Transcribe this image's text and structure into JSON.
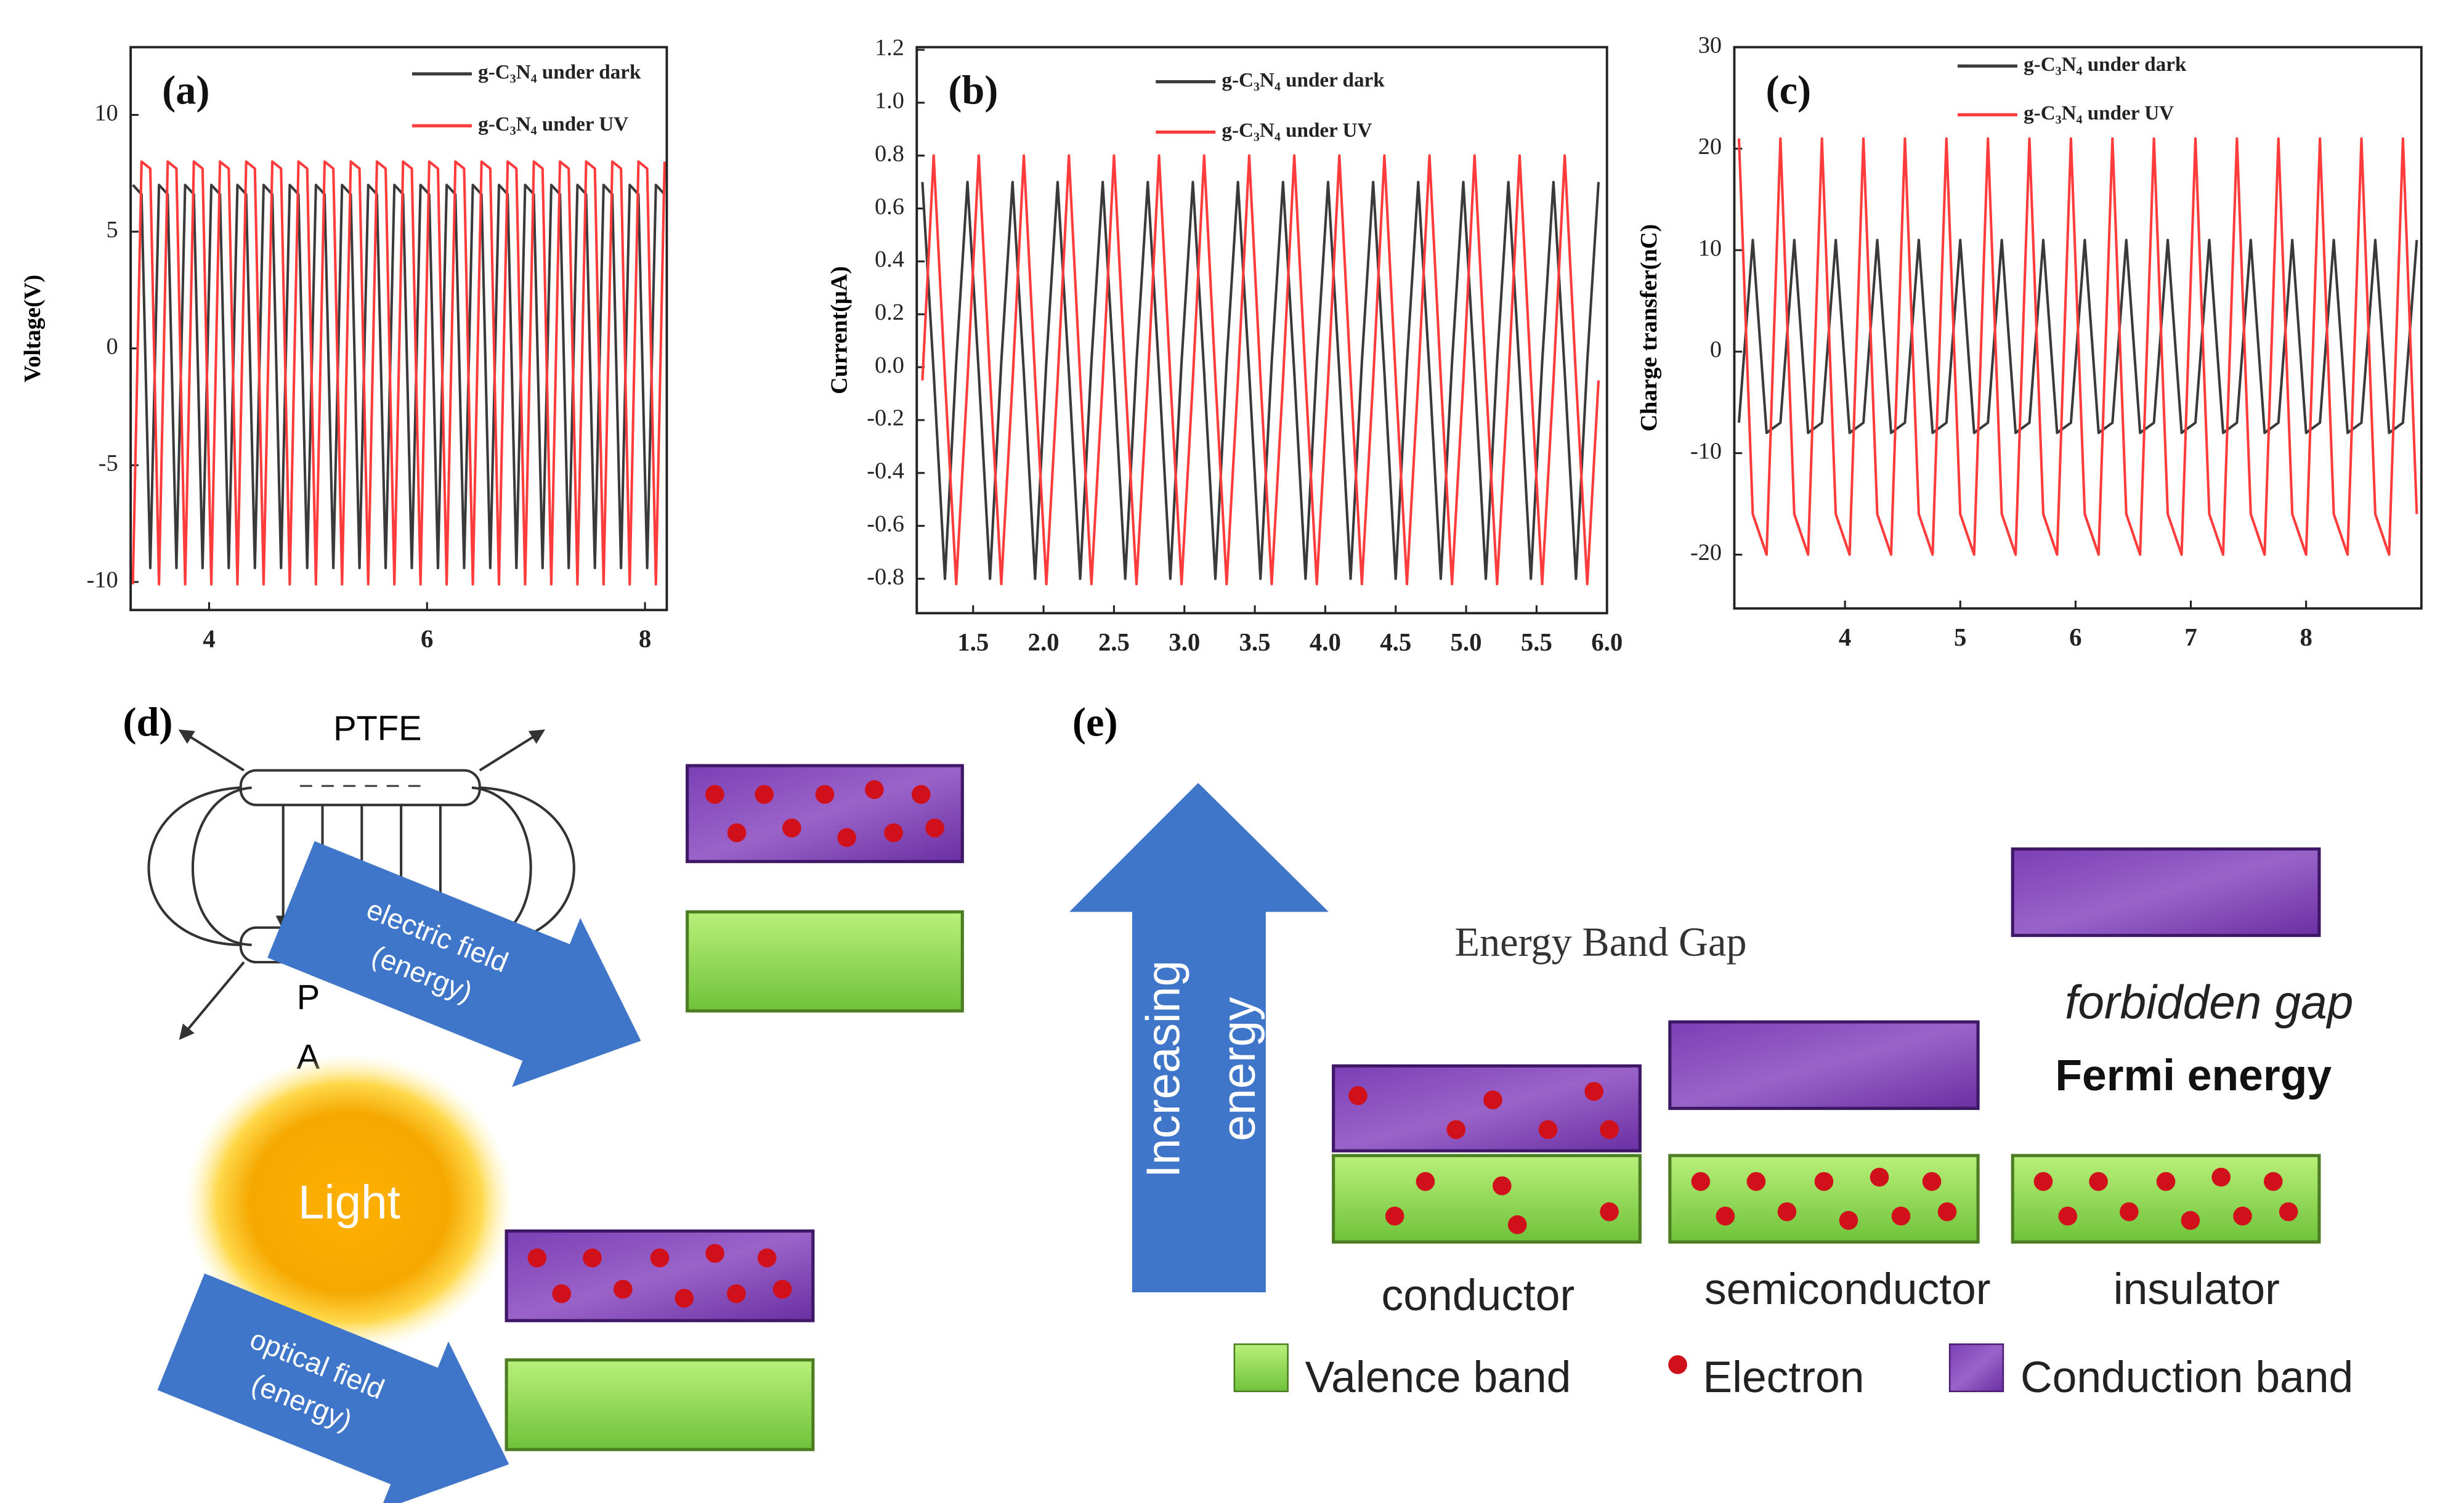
{
  "chart_data": [
    {
      "type": "line",
      "title": "(a)",
      "y_label": "Voltage(V)",
      "xlim": [
        3.28,
        8.2
      ],
      "xticks": [
        4,
        6,
        8
      ],
      "ylim": [
        -11.2,
        12.9
      ],
      "yticks": [
        -10,
        -5,
        0,
        5,
        10
      ],
      "x": [
        3.3,
        3.38,
        3.46,
        3.54,
        3.62,
        3.7,
        3.78,
        3.86,
        3.94,
        4.02,
        4.1,
        4.18,
        4.26,
        4.34,
        4.42,
        4.5,
        4.58,
        4.66,
        4.74,
        4.82,
        4.9,
        4.98,
        5.06,
        5.14,
        5.22,
        5.3,
        5.38,
        5.46,
        5.54,
        5.62,
        5.7,
        5.78,
        5.86,
        5.94,
        6.02,
        6.1,
        6.18,
        6.26,
        6.34,
        6.42,
        6.5,
        6.58,
        6.66,
        6.74,
        6.82,
        6.9,
        6.98,
        7.06,
        7.14,
        7.22,
        7.3,
        7.38,
        7.46,
        7.54,
        7.62,
        7.7,
        7.78,
        7.86,
        7.94,
        8.02,
        8.1,
        8.18
      ],
      "series": [
        {
          "name": "g-C₃N₄ under dark",
          "color": "#3a3a3a",
          "values": [
            7,
            6.6,
            -9.4,
            7,
            6.6,
            -9.4,
            7,
            6.6,
            -9.4,
            7,
            6.6,
            -9.4,
            7,
            6.6,
            -9.4,
            7,
            6.6,
            -9.4,
            7,
            6.6,
            -9.4,
            7,
            6.6,
            -9.4,
            7,
            6.6,
            -9.4,
            7,
            6.6,
            -9.4,
            7,
            6.6,
            -9.4,
            7,
            6.6,
            -9.4,
            7,
            6.6,
            -9.4,
            7,
            6.6,
            -9.4,
            7,
            6.6,
            -9.4,
            7,
            6.6,
            -9.4,
            7,
            6.6,
            -9.4,
            7,
            6.6,
            -9.4,
            7,
            6.6,
            -9.4,
            7,
            6.6,
            -9.4,
            7,
            6.6
          ]
        },
        {
          "name": "g-C₃N₄ under UV",
          "color": "#ff3b3b",
          "values": [
            -10.1,
            8,
            7.7,
            -10.1,
            8,
            7.7,
            -10.1,
            8,
            7.7,
            -10.1,
            8,
            7.7,
            -10.1,
            8,
            7.7,
            -10.1,
            8,
            7.7,
            -10.1,
            8,
            7.7,
            -10.1,
            8,
            7.7,
            -10.1,
            8,
            7.7,
            -10.1,
            8,
            7.7,
            -10.1,
            8,
            7.7,
            -10.1,
            8,
            7.7,
            -10.1,
            8,
            7.7,
            -10.1,
            8,
            7.7,
            -10.1,
            8,
            7.7,
            -10.1,
            8,
            7.7,
            -10.1,
            8,
            7.7,
            -10.1,
            8,
            7.7,
            -10.1,
            8,
            7.7,
            -10.1,
            8,
            7.7,
            -10.1,
            8
          ]
        }
      ]
    },
    {
      "type": "line",
      "title": "(b)",
      "y_label": "Current(μA)",
      "xlim": [
        1.1,
        6.0
      ],
      "xticks": [
        1.5,
        {
          "value": 2,
          "label": "2.0"
        },
        2.5,
        {
          "value": 3,
          "label": "3.0"
        },
        3.5,
        {
          "value": 4,
          "label": "4.0"
        },
        4.5,
        {
          "value": 5,
          "label": "5.0"
        },
        5.5,
        {
          "value": 6,
          "label": "6.0"
        }
      ],
      "ylim": [
        -0.93,
        1.21
      ],
      "yticks": [
        -0.8,
        -0.6,
        -0.4,
        -0.2,
        {
          "value": 0,
          "label": "0.0"
        },
        0.2,
        0.4,
        0.6,
        0.8,
        {
          "value": 1,
          "label": "1.0"
        },
        1.2
      ],
      "x": [
        1.14,
        1.22,
        1.3,
        1.38,
        1.46,
        1.54,
        1.62,
        1.7,
        1.78,
        1.86,
        1.94,
        2.02,
        2.1,
        2.18,
        2.26,
        2.34,
        2.42,
        2.5,
        2.58,
        2.66,
        2.74,
        2.82,
        2.9,
        2.98,
        3.06,
        3.14,
        3.22,
        3.3,
        3.38,
        3.46,
        3.54,
        3.62,
        3.7,
        3.78,
        3.86,
        3.94,
        4.02,
        4.1,
        4.18,
        4.26,
        4.34,
        4.42,
        4.5,
        4.58,
        4.66,
        4.74,
        4.82,
        4.9,
        4.98,
        5.06,
        5.14,
        5.22,
        5.3,
        5.38,
        5.46,
        5.54,
        5.62,
        5.7,
        5.78,
        5.86,
        5.94
      ],
      "series": [
        {
          "name": "g-C₃N₄ under dark",
          "color": "#3a3a3a",
          "values": [
            0.7,
            -0.02,
            -0.8,
            0.02,
            0.7,
            -0.02,
            -0.8,
            0.02,
            0.7,
            -0.02,
            -0.8,
            0.02,
            0.7,
            -0.02,
            -0.8,
            0.02,
            0.7,
            -0.02,
            -0.8,
            0.02,
            0.7,
            -0.02,
            -0.8,
            0.02,
            0.7,
            -0.02,
            -0.8,
            0.02,
            0.7,
            -0.02,
            -0.8,
            0.02,
            0.7,
            -0.02,
            -0.8,
            0.02,
            0.7,
            -0.02,
            -0.8,
            0.02,
            0.7,
            -0.02,
            -0.8,
            0.02,
            0.7,
            -0.02,
            -0.8,
            0.02,
            0.7,
            -0.02,
            -0.8,
            0.02,
            0.7,
            -0.02,
            -0.8,
            0.02,
            0.7,
            -0.02,
            -0.8,
            0.02,
            0.7
          ]
        },
        {
          "name": "g-C₃N₄ under UV",
          "color": "#ff3b3b",
          "values": [
            -0.05,
            0.8,
            -0.04,
            -0.82,
            -0.05,
            0.8,
            -0.04,
            -0.82,
            -0.05,
            0.8,
            -0.04,
            -0.82,
            -0.05,
            0.8,
            -0.04,
            -0.82,
            -0.05,
            0.8,
            -0.04,
            -0.82,
            -0.05,
            0.8,
            -0.04,
            -0.82,
            -0.05,
            0.8,
            -0.04,
            -0.82,
            -0.05,
            0.8,
            -0.04,
            -0.82,
            -0.05,
            0.8,
            -0.04,
            -0.82,
            -0.05,
            0.8,
            -0.04,
            -0.82,
            -0.05,
            0.8,
            -0.04,
            -0.82,
            -0.05,
            0.8,
            -0.04,
            -0.82,
            -0.05,
            0.8,
            -0.04,
            -0.82,
            -0.05,
            0.8,
            -0.04,
            -0.82,
            -0.05,
            0.8,
            -0.04,
            -0.82,
            -0.05
          ]
        }
      ]
    },
    {
      "type": "line",
      "title": "(c)",
      "y_label": "Charge transfer(nC)",
      "xlim": [
        3.04,
        9.0
      ],
      "xticks": [
        4,
        5,
        6,
        7,
        8
      ],
      "ylim": [
        -25.3,
        30
      ],
      "yticks": [
        -20,
        -10,
        0,
        10,
        20,
        30
      ],
      "x": [
        3.08,
        3.2,
        3.32,
        3.44,
        3.56,
        3.68,
        3.8,
        3.92,
        4.04,
        4.16,
        4.28,
        4.4,
        4.52,
        4.64,
        4.76,
        4.88,
        5.0,
        5.12,
        5.24,
        5.36,
        5.48,
        5.6,
        5.72,
        5.84,
        5.96,
        6.08,
        6.2,
        6.32,
        6.44,
        6.56,
        6.68,
        6.8,
        6.92,
        7.04,
        7.16,
        7.28,
        7.4,
        7.52,
        7.64,
        7.76,
        7.88,
        8.0,
        8.12,
        8.24,
        8.36,
        8.48,
        8.6,
        8.72,
        8.84,
        8.96
      ],
      "series": [
        {
          "name": "g-C₃N₄ under dark",
          "color": "#3a3a3a",
          "values": [
            -7,
            11,
            -8,
            -7,
            11,
            -8,
            -7,
            11,
            -8,
            -7,
            11,
            -8,
            -7,
            11,
            -8,
            -7,
            11,
            -8,
            -7,
            11,
            -8,
            -7,
            11,
            -8,
            -7,
            11,
            -8,
            -7,
            11,
            -8,
            -7,
            11,
            -8,
            -7,
            11,
            -8,
            -7,
            11,
            -8,
            -7,
            11,
            -8,
            -7,
            11,
            -8,
            -7,
            11,
            -8,
            -7,
            11
          ]
        },
        {
          "name": "g-C₃N₄ under UV",
          "color": "#ff3b3b",
          "values": [
            21,
            -16,
            -20,
            21,
            -16,
            -20,
            21,
            -16,
            -20,
            21,
            -16,
            -20,
            21,
            -16,
            -20,
            21,
            -16,
            -20,
            21,
            -16,
            -20,
            21,
            -16,
            -20,
            21,
            -16,
            -20,
            21,
            -16,
            -20,
            21,
            -16,
            -20,
            21,
            -16,
            -20,
            21,
            -16,
            -20,
            21,
            -16,
            -20,
            21,
            -16,
            -20,
            21,
            -16,
            -20,
            21,
            -16
          ]
        }
      ]
    }
  ],
  "diagram_d": {
    "label": "(d)",
    "top_plate": "PTFE",
    "bottom_plate_1": "P",
    "bottom_plate_2": "A",
    "arrow_1_line_1": "electric field",
    "arrow_1_line_2": "(energy)",
    "light": "Light",
    "arrow_2_line_1": "optical field",
    "arrow_2_line_2": "(energy)"
  },
  "diagram_e": {
    "label": "(e)",
    "arrow_line_1": "Increasing",
    "arrow_line_2": "energy",
    "title": "Energy Band Gap",
    "forbidden_gap": "forbidden gap",
    "fermi_energy": "Fermi energy",
    "columns": [
      "conductor",
      "semiconductor",
      "insulator"
    ],
    "legend": [
      "Valence band",
      "Electron",
      "Conduction band"
    ]
  }
}
